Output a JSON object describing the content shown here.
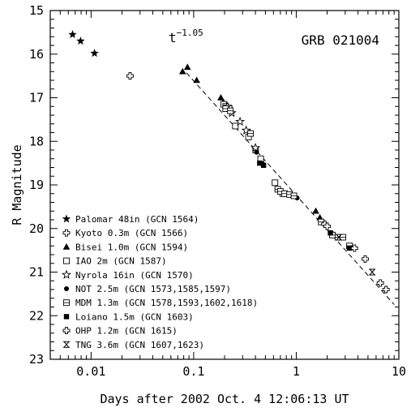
{
  "chart_data": {
    "type": "scatter",
    "title": "GRB 021004",
    "xlabel": "Days after 2002 Oct. 4 12:06:13 UT",
    "ylabel": "R Magnitude",
    "x_scale": "log",
    "xlim": [
      0.004,
      10
    ],
    "ylim": [
      23,
      15
    ],
    "y_inverted": true,
    "x_ticks": [
      0.01,
      0.1,
      1,
      10
    ],
    "x_tick_labels": [
      "0.01",
      "0.1",
      "1",
      "10"
    ],
    "y_ticks": [
      15,
      16,
      17,
      18,
      19,
      20,
      21,
      22,
      23
    ],
    "y_tick_labels": [
      "15",
      "16",
      "17",
      "18",
      "19",
      "20",
      "21",
      "22",
      "23"
    ],
    "grid": false,
    "legend_position": "bottom-left",
    "fit_line": {
      "label": "t",
      "exponent": "−1.05",
      "slope": -1.05,
      "x_range": [
        0.085,
        9
      ],
      "anchor_x": 1,
      "anchor_y": 19.24
    },
    "series": [
      {
        "name": "Palomar 48in (GCN 1564)",
        "marker": "filled-star",
        "points": [
          [
            0.0066,
            15.55
          ],
          [
            0.0079,
            15.7
          ],
          [
            0.0108,
            15.98
          ]
        ]
      },
      {
        "name": "Kyoto 0.3m (GCN 1566)",
        "marker": "open-cross",
        "points": [
          [
            0.024,
            16.5
          ]
        ]
      },
      {
        "name": "Bisei 1.0m (GCN 1594)",
        "marker": "filled-triangle",
        "points": [
          [
            0.078,
            16.4
          ],
          [
            0.087,
            16.3
          ],
          [
            0.107,
            16.6
          ],
          [
            0.184,
            17.0
          ],
          [
            0.195,
            17.1
          ],
          [
            0.354,
            17.8
          ],
          [
            0.46,
            18.45
          ],
          [
            1.55,
            19.6
          ],
          [
            1.7,
            19.75
          ]
        ]
      },
      {
        "name": "IAO 2m (GCN 1587)",
        "marker": "open-square",
        "points": [
          [
            0.196,
            17.15
          ],
          [
            0.205,
            17.2
          ],
          [
            0.222,
            17.25
          ],
          [
            0.255,
            17.65
          ],
          [
            0.343,
            17.9
          ],
          [
            0.402,
            18.2
          ],
          [
            0.45,
            18.4
          ],
          [
            0.62,
            18.95
          ],
          [
            0.74,
            19.2
          ]
        ]
      },
      {
        "name": "Nyrola 16in (GCN 1570)",
        "marker": "open-star",
        "points": [
          [
            0.213,
            17.2
          ],
          [
            0.235,
            17.35
          ],
          [
            0.283,
            17.55
          ],
          [
            0.325,
            17.75
          ],
          [
            0.4,
            18.15
          ]
        ]
      },
      {
        "name": "NOT 2.5m (GCN 1573,1585,1597)",
        "marker": "filled-circle",
        "points": [
          [
            0.41,
            18.25
          ],
          [
            0.78,
            19.2
          ],
          [
            0.9,
            19.25
          ],
          [
            1.02,
            19.3
          ],
          [
            2.2,
            20.1
          ]
        ]
      },
      {
        "name": "MDM 1.3m (GCN 1578,1593,1602,1618)",
        "marker": "square-dot",
        "points": [
          [
            0.205,
            17.25
          ],
          [
            0.228,
            17.3
          ],
          [
            0.358,
            17.82
          ],
          [
            0.66,
            19.1
          ],
          [
            0.7,
            19.15
          ],
          [
            0.77,
            19.2
          ],
          [
            0.86,
            19.22
          ],
          [
            0.95,
            19.25
          ],
          [
            1.75,
            19.85
          ],
          [
            2.25,
            20.15
          ],
          [
            2.55,
            20.2
          ],
          [
            2.85,
            20.2
          ],
          [
            3.3,
            20.4
          ]
        ]
      },
      {
        "name": "Loiano 1.5m (GCN 1603)",
        "marker": "filled-square",
        "points": [
          [
            0.44,
            18.5
          ],
          [
            0.48,
            18.55
          ],
          [
            2.15,
            20.1
          ],
          [
            3.3,
            20.45
          ]
        ]
      },
      {
        "name": "OHP 1.2m (GCN 1615)",
        "marker": "open-cross",
        "points": [
          [
            1.9,
            19.9
          ],
          [
            2.0,
            19.95
          ],
          [
            3.7,
            20.45
          ],
          [
            4.7,
            20.7
          ],
          [
            6.6,
            21.25
          ],
          [
            7.5,
            21.4
          ]
        ]
      },
      {
        "name": "TNG 3.6m (GCN 1607,1623)",
        "marker": "x-bar",
        "points": [
          [
            2.6,
            20.2
          ],
          [
            5.5,
            21.0
          ]
        ]
      }
    ]
  }
}
